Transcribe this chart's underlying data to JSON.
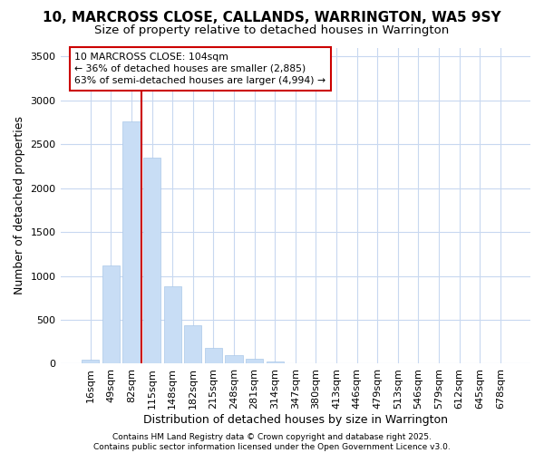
{
  "title": "10, MARCROSS CLOSE, CALLANDS, WARRINGTON, WA5 9SY",
  "subtitle": "Size of property relative to detached houses in Warrington",
  "xlabel": "Distribution of detached houses by size in Warrington",
  "ylabel": "Number of detached properties",
  "bar_labels": [
    "16sqm",
    "49sqm",
    "82sqm",
    "115sqm",
    "148sqm",
    "182sqm",
    "215sqm",
    "248sqm",
    "281sqm",
    "314sqm",
    "347sqm",
    "380sqm",
    "413sqm",
    "446sqm",
    "479sqm",
    "513sqm",
    "546sqm",
    "579sqm",
    "612sqm",
    "645sqm",
    "678sqm"
  ],
  "bar_values": [
    50,
    1120,
    2760,
    2350,
    880,
    435,
    185,
    100,
    60,
    30,
    0,
    0,
    0,
    0,
    0,
    0,
    0,
    0,
    0,
    0,
    0
  ],
  "bar_color": "#c8ddf5",
  "bar_edge_color": "#aac8e8",
  "vline_color": "#cc0000",
  "vline_pos": 2.5,
  "annotation_text": "10 MARCROSS CLOSE: 104sqm\n← 36% of detached houses are smaller (2,885)\n63% of semi-detached houses are larger (4,994) →",
  "annotation_box_color": "#cc0000",
  "ylim": [
    0,
    3600
  ],
  "yticks": [
    0,
    500,
    1000,
    1500,
    2000,
    2500,
    3000,
    3500
  ],
  "background_color": "#ffffff",
  "grid_color": "#c8d8f0",
  "footnote": "Contains HM Land Registry data © Crown copyright and database right 2025.\nContains public sector information licensed under the Open Government Licence v3.0.",
  "title_fontsize": 11,
  "subtitle_fontsize": 9.5,
  "xlabel_fontsize": 9,
  "ylabel_fontsize": 9,
  "tick_fontsize": 8,
  "footnote_fontsize": 6.5
}
